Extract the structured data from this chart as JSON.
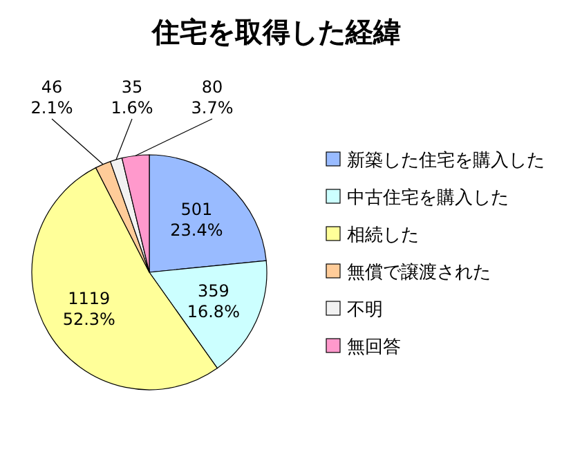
{
  "chart_data": {
    "type": "pie",
    "title": "住宅を取得した経緯",
    "categories": [
      "新築した住宅を購入した",
      "中古住宅を購入した",
      "相続した",
      "無償で譲渡された",
      "不明",
      "無回答"
    ],
    "values": [
      501,
      359,
      1119,
      46,
      35,
      80
    ],
    "colors": [
      "#99bbff",
      "#ccffff",
      "#ffff99",
      "#ffcc99",
      "#f2f2f2",
      "#ff99cc"
    ],
    "value_labels": [
      "501\n23.4%",
      "359\n16.8%",
      "1119\n52.3%",
      "46\n2.1%",
      "35\n1.6%",
      "80\n3.7%"
    ],
    "legend": "right"
  }
}
